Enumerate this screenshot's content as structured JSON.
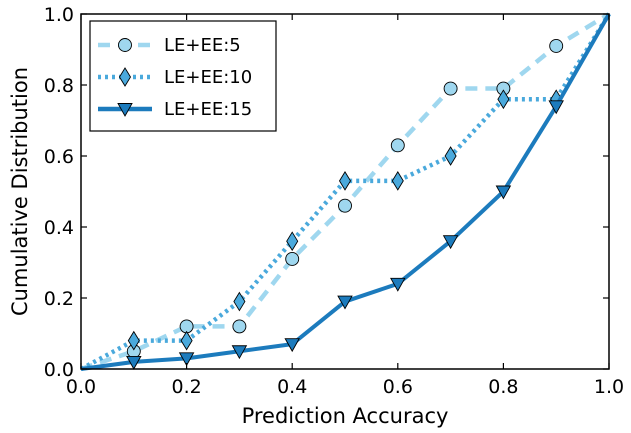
{
  "chart_data": {
    "type": "line",
    "xlabel": "Prediction Accuracy",
    "ylabel": "Cumulative Distribution",
    "xlim": [
      0.0,
      1.0
    ],
    "ylim": [
      0.0,
      1.0
    ],
    "xticks": [
      "0.0",
      "0.2",
      "0.4",
      "0.6",
      "0.8",
      "1.0"
    ],
    "yticks": [
      "0.0",
      "0.2",
      "0.4",
      "0.6",
      "0.8",
      "1.0"
    ],
    "grid": false,
    "legend_position": "top-left",
    "series": [
      {
        "name": "LE+EE:5",
        "color": "#9fd7ef",
        "line_style": "dashed",
        "marker": "circle",
        "x": [
          0.0,
          0.1,
          0.2,
          0.3,
          0.4,
          0.5,
          0.6,
          0.7,
          0.8,
          0.9,
          1.0
        ],
        "y": [
          0.0,
          0.05,
          0.12,
          0.12,
          0.31,
          0.46,
          0.63,
          0.79,
          0.79,
          0.91,
          1.0
        ]
      },
      {
        "name": "LE+EE:10",
        "color": "#4aa9dc",
        "line_style": "dotted",
        "marker": "diamond",
        "x": [
          0.0,
          0.1,
          0.2,
          0.3,
          0.4,
          0.5,
          0.6,
          0.7,
          0.8,
          0.9,
          1.0
        ],
        "y": [
          0.0,
          0.08,
          0.08,
          0.19,
          0.36,
          0.53,
          0.53,
          0.6,
          0.76,
          0.76,
          1.0
        ]
      },
      {
        "name": "LE+EE:15",
        "color": "#1c7bbd",
        "line_style": "solid",
        "marker": "triangle-down",
        "x": [
          0.0,
          0.1,
          0.2,
          0.3,
          0.4,
          0.5,
          0.6,
          0.7,
          0.8,
          0.9,
          1.0
        ],
        "y": [
          0.0,
          0.02,
          0.03,
          0.05,
          0.07,
          0.19,
          0.24,
          0.36,
          0.5,
          0.74,
          1.0
        ]
      }
    ]
  }
}
